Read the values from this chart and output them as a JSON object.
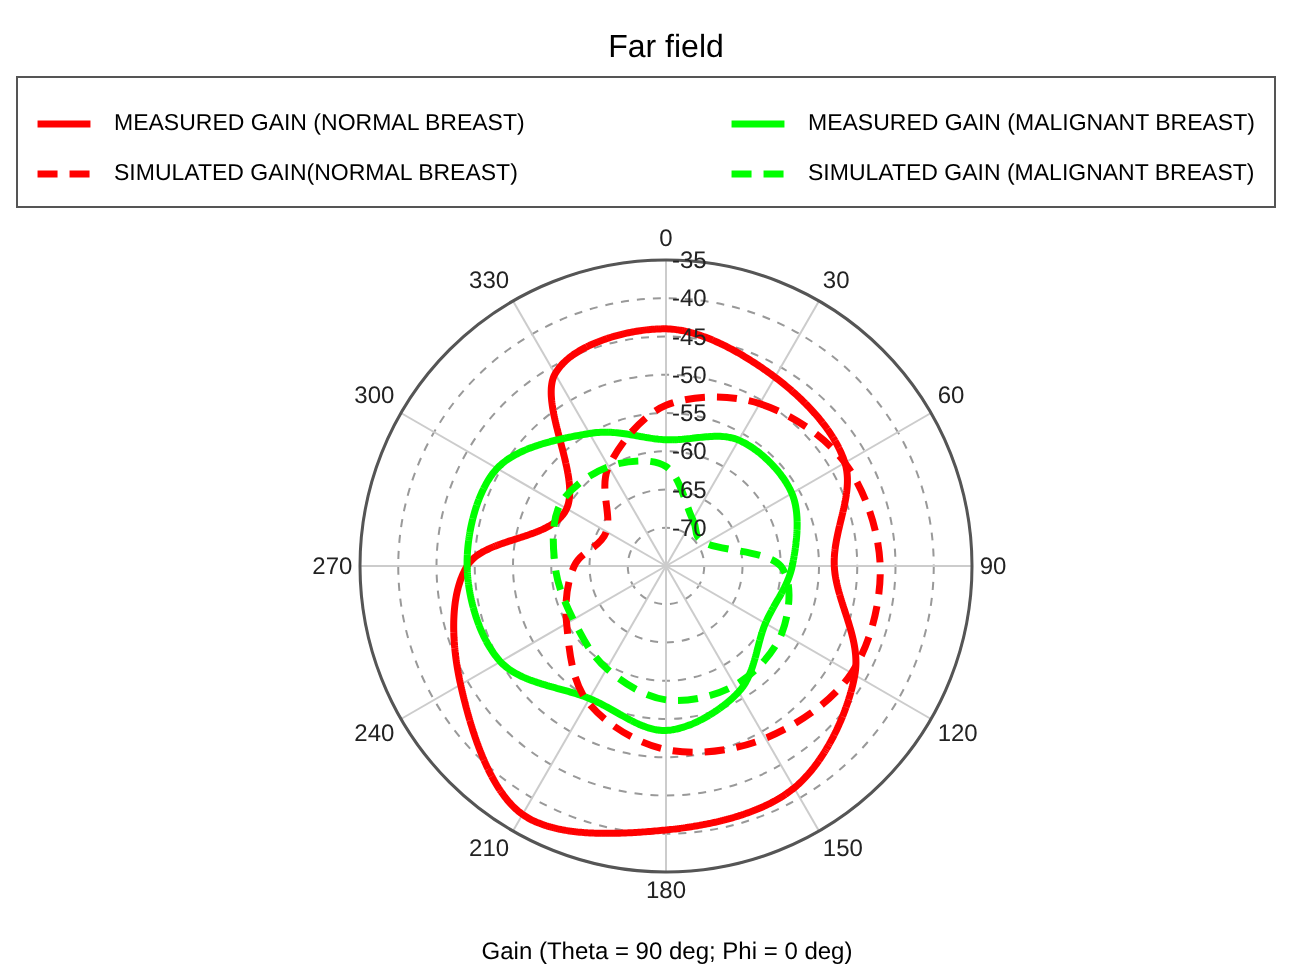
{
  "chart_data": {
    "type": "radar",
    "title": "Far field",
    "xlabel": "Gain (Theta = 90 deg; Phi = 0 deg)",
    "categories": [
      "0",
      "30",
      "60",
      "90",
      "120",
      "150",
      "180",
      "210",
      "240",
      "270",
      "300",
      "330"
    ],
    "ylim": [
      -75,
      -35
    ],
    "yticks": [
      -70,
      -65,
      -60,
      -55,
      -50,
      -45,
      -40,
      -35
    ],
    "grid": true,
    "legend": "top",
    "series": [
      {
        "name": "MEASURED GAIN (NORMAL BREAST)",
        "color": "#ff0000",
        "line_style": "solid",
        "values": [
          -44,
          -46.5,
          -48,
          -53,
          -46.5,
          -41.5,
          -40.5,
          -37.5,
          -44,
          -49,
          -60,
          -46
        ]
      },
      {
        "name": "MEASURED GAIN (MALIGNANT BREAST)",
        "color": "#00ff00",
        "line_style": "solid",
        "values": [
          -58.5,
          -56,
          -56,
          -58.5,
          -60,
          -56,
          -53.5,
          -55,
          -50,
          -49,
          -49.5,
          -55
        ]
      },
      {
        "name": "SIMULATED GAIN(NORMAL BREAST)",
        "color": "#ff0000",
        "line_style": "dashed",
        "values": [
          -54,
          -50.5,
          -48,
          -47,
          -47,
          -49,
          -51,
          -54.5,
          -60,
          -63,
          -66,
          -60
        ]
      },
      {
        "name": "SIMULATED GAIN (MALIGNANT BREAST)",
        "color": "#00ff00",
        "line_style": "dashed",
        "values": [
          -62,
          -68,
          -69,
          -60,
          -57.5,
          -57,
          -57.5,
          -59.5,
          -61,
          -60.5,
          -59,
          -60
        ]
      }
    ]
  }
}
